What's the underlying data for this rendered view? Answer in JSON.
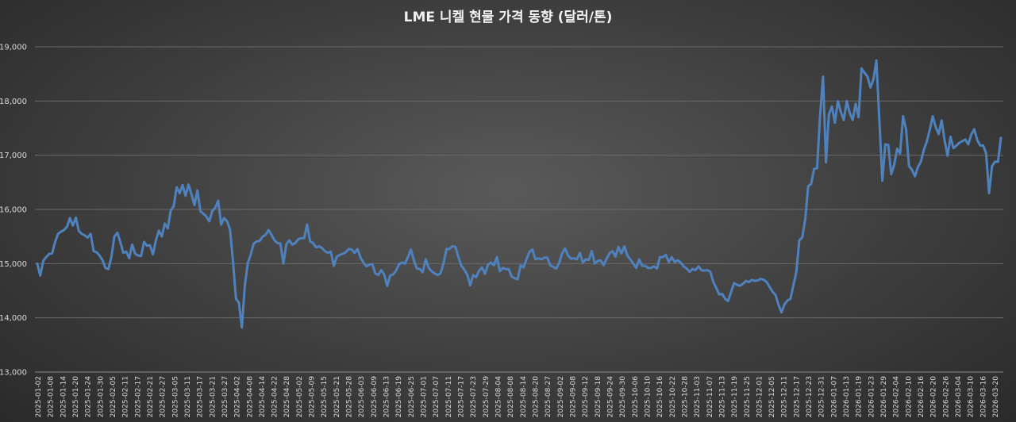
{
  "chart_data": {
    "type": "line",
    "title": "LME 니켈 현물 가격 동향 (달러/톤)",
    "xlabel": "",
    "ylabel": "",
    "ylim": [
      13000,
      19000
    ],
    "yticks": [
      "13,000",
      "14,000",
      "15,000",
      "16,000",
      "17,000",
      "18,000",
      "19,000"
    ],
    "ytick_values": [
      13000,
      14000,
      15000,
      16000,
      17000,
      18000,
      19000
    ],
    "x_tick_labels": [
      "2025-01-02",
      "2025-01-08",
      "2025-01-14",
      "2025-01-20",
      "2025-01-24",
      "2025-01-30",
      "2025-02-05",
      "2025-02-11",
      "2025-02-17",
      "2025-02-21",
      "2025-02-27",
      "2025-03-05",
      "2025-03-11",
      "2025-03-17",
      "2025-03-21",
      "2025-03-27",
      "2025-04-02",
      "2025-04-08",
      "2025-04-14",
      "2025-04-22",
      "2025-04-28",
      "2025-05-02",
      "2025-05-09",
      "2025-05-15",
      "2025-05-21",
      "2025-05-28",
      "2025-06-03",
      "2025-06-09",
      "2025-06-13",
      "2025-06-19",
      "2025-06-25",
      "2025-07-01",
      "2025-07-07",
      "2025-07-11",
      "2025-07-17",
      "2025-07-23",
      "2025-07-29",
      "2025-08-04",
      "2025-08-08",
      "2025-08-14",
      "2025-08-20",
      "2025-08-27",
      "2025-09-02",
      "2025-09-08",
      "2025-09-12",
      "2025-09-18",
      "2025-09-24",
      "2025-09-30",
      "2025-10-06",
      "2025-10-10",
      "2025-10-16",
      "2025-10-22",
      "2025-10-28",
      "2025-11-03",
      "2025-11-07",
      "2025-11-13",
      "2025-11-19",
      "2025-11-25",
      "2025-12-01",
      "2025-12-05",
      "2025-12-11",
      "2025-12-17",
      "2025-12-23",
      "2025-12-31",
      "2026-01-07",
      "2026-01-13",
      "2026-01-19",
      "2026-01-23",
      "2026-01-29",
      "2026-02-04",
      "2026-02-10",
      "2026-02-16",
      "2026-02-20",
      "2026-02-26",
      "2026-03-04",
      "2026-03-10",
      "2026-03-16",
      "2026-03-20"
    ],
    "grid": true,
    "legend": "none",
    "series": [
      {
        "color": "#4f81bd",
        "values": [
          15000,
          14780,
          15050,
          15120,
          15180,
          15190,
          15400,
          15550,
          15590,
          15620,
          15680,
          15840,
          15700,
          15850,
          15600,
          15550,
          15520,
          15480,
          15550,
          15230,
          15210,
          15150,
          15060,
          14920,
          14900,
          15130,
          15500,
          15570,
          15400,
          15200,
          15220,
          15100,
          15350,
          15180,
          15150,
          15140,
          15400,
          15330,
          15340,
          15170,
          15430,
          15610,
          15500,
          15740,
          15650,
          15980,
          16060,
          16410,
          16300,
          16450,
          16250,
          16460,
          16280,
          16080,
          16350,
          15970,
          15920,
          15870,
          15780,
          15970,
          16030,
          16160,
          15720,
          15840,
          15780,
          15630,
          15050,
          14350,
          14280,
          13820,
          14600,
          15010,
          15170,
          15370,
          15410,
          15420,
          15500,
          15530,
          15620,
          15530,
          15430,
          15380,
          15370,
          15000,
          15360,
          15430,
          15350,
          15380,
          15450,
          15470,
          15470,
          15720,
          15410,
          15380,
          15300,
          15320,
          15290,
          15230,
          15200,
          15220,
          14960,
          15130,
          15160,
          15180,
          15210,
          15270,
          15260,
          15200,
          15270,
          15110,
          15020,
          14950,
          14980,
          14990,
          14820,
          14790,
          14880,
          14800,
          14590,
          14780,
          14800,
          14870,
          14990,
          15020,
          15000,
          15120,
          15260,
          15060,
          14910,
          14900,
          14840,
          15080,
          14920,
          14860,
          14820,
          14790,
          14820,
          15000,
          15270,
          15270,
          15320,
          15310,
          15130,
          14960,
          14890,
          14800,
          14600,
          14790,
          14750,
          14870,
          14930,
          14810,
          14980,
          15020,
          14970,
          15120,
          14860,
          14920,
          14900,
          14900,
          14760,
          14730,
          14710,
          14970,
          14930,
          15080,
          15220,
          15260,
          15080,
          15100,
          15080,
          15110,
          15110,
          14970,
          14940,
          14910,
          15010,
          15190,
          15280,
          15150,
          15090,
          15100,
          15080,
          15200,
          15020,
          15080,
          15070,
          15230,
          15000,
          15050,
          15060,
          14970,
          15090,
          15190,
          15230,
          15130,
          15310,
          15190,
          15320,
          15150,
          15080,
          15000,
          14920,
          15080,
          14960,
          14960,
          14920,
          14920,
          14950,
          14910,
          15120,
          15120,
          15160,
          15030,
          15120,
          15030,
          15060,
          15020,
          14950,
          14910,
          14850,
          14900,
          14880,
          14950,
          14880,
          14870,
          14880,
          14850,
          14660,
          14550,
          14430,
          14440,
          14350,
          14310,
          14480,
          14640,
          14610,
          14590,
          14630,
          14680,
          14660,
          14700,
          14680,
          14690,
          14720,
          14700,
          14660,
          14570,
          14480,
          14420,
          14240,
          14100,
          14250,
          14320,
          14350,
          14600,
          14850,
          15430,
          15480,
          15820,
          16430,
          16470,
          16750,
          16760,
          17720,
          18450,
          16870,
          17750,
          17900,
          17600,
          18000,
          17800,
          17650,
          18000,
          17780,
          17650,
          17950,
          17700,
          18600,
          18520,
          18450,
          18250,
          18400,
          18750,
          17660,
          16530,
          17200,
          17190,
          16650,
          16820,
          17120,
          17030,
          17720,
          17480,
          16800,
          16730,
          16610,
          16780,
          16880,
          17100,
          17250,
          17470,
          17720,
          17520,
          17390,
          17640,
          17280,
          16990,
          17340,
          17130,
          17180,
          17230,
          17260,
          17290,
          17200,
          17380,
          17480,
          17280,
          17180,
          17180,
          17040,
          16300,
          16800,
          16880,
          16880,
          17320
        ]
      }
    ]
  }
}
